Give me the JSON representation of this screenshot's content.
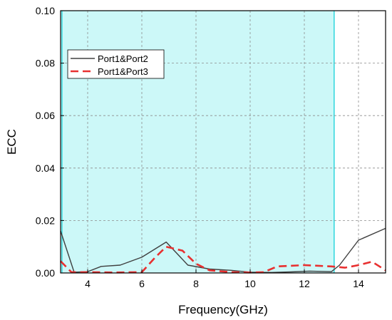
{
  "chart_data": {
    "type": "line",
    "title": "",
    "xlabel": "Frequency(GHz)",
    "ylabel": "ECC",
    "xlim": [
      3,
      15
    ],
    "ylim": [
      0,
      0.1
    ],
    "x_ticks": [
      4,
      6,
      8,
      10,
      12,
      14
    ],
    "x_tick_labels": [
      "4",
      "6",
      "8",
      "10",
      "12",
      "14"
    ],
    "y_ticks": [
      0,
      0.02,
      0.04,
      0.06,
      0.08,
      0.1
    ],
    "y_tick_labels": [
      "0.00",
      "0.02",
      "0.04",
      "0.06",
      "0.08",
      "0.10"
    ],
    "grid": true,
    "legend_position": "top-left",
    "shaded_band": {
      "x_start": 3.05,
      "x_end": 13.1,
      "color": "#ccf8f8",
      "edge_color": "#2ed6dc"
    },
    "series": [
      {
        "name": "Port1&Port2",
        "color": "#404040",
        "style": "solid",
        "x": [
          3,
          3.5,
          4.0,
          4.5,
          5.2,
          6.0,
          6.9,
          7.7,
          8.5,
          9.3,
          10.0,
          10.8,
          11.5,
          12.2,
          13.0,
          13.3,
          14.0,
          15.0
        ],
        "y": [
          0.016,
          0.0003,
          0.0005,
          0.0025,
          0.003,
          0.006,
          0.0118,
          0.003,
          0.0015,
          0.001,
          0.0003,
          0.0002,
          0.0004,
          0.0007,
          0.0005,
          0.003,
          0.0125,
          0.017
        ]
      },
      {
        "name": "Port1&Port3",
        "color": "#e83030",
        "style": "dashed",
        "x": [
          3,
          3.4,
          4.0,
          5.0,
          6.0,
          6.5,
          6.9,
          7.5,
          8.0,
          8.5,
          9.3,
          10.0,
          10.5,
          11.0,
          12.0,
          13.0,
          13.5,
          14.0,
          14.5,
          15.0
        ],
        "y": [
          0.0045,
          0.0003,
          0.0003,
          0.0002,
          0.0003,
          0.006,
          0.01,
          0.0085,
          0.0035,
          0.001,
          0.0003,
          0.0002,
          0.0003,
          0.0025,
          0.003,
          0.0025,
          0.002,
          0.003,
          0.0043,
          0.001
        ]
      }
    ]
  }
}
